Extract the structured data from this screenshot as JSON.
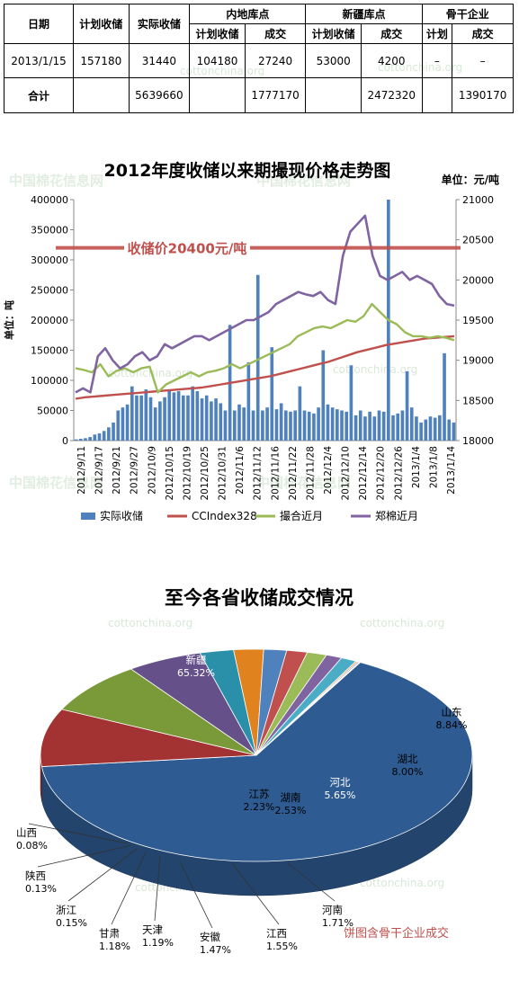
{
  "table": {
    "headers": {
      "date": "日期",
      "planned": "计划收储",
      "actual": "实际收储",
      "inland": "内地库点",
      "xinjiang": "新疆库点",
      "backbone": "骨干企业",
      "sub_planned": "计划收储",
      "sub_deal": "成交",
      "sub_plan_short": "计划"
    },
    "rows": [
      {
        "date": "2013/1/15",
        "planned": "157180",
        "actual": "31440",
        "inland_planned": "104180",
        "inland_deal": "27240",
        "xj_planned": "53000",
        "xj_deal": "4200",
        "bb_planned": "–",
        "bb_deal": "–"
      },
      {
        "date": "合计",
        "planned": "",
        "actual": "5639660",
        "inland_planned": "",
        "inland_deal": "1777170",
        "xj_planned": "",
        "xj_deal": "2472320",
        "bb_planned": "",
        "bb_deal": "1390170"
      }
    ]
  },
  "watermark": {
    "domain": "cottonchina.org",
    "cn": "中国棉花信息网"
  },
  "chart_data": [
    {
      "type": "bar+line",
      "title": "2012年度收储以来期撮现价格走势图",
      "unit_right": "单位：元/吨",
      "ylabel": "单位：吨",
      "ylim": [
        0,
        400000
      ],
      "y2lim": [
        18000,
        21000
      ],
      "yticks": [
        "0",
        "50000",
        "100000",
        "150000",
        "200000",
        "250000",
        "300000",
        "350000",
        "400000"
      ],
      "y2ticks": [
        "18000",
        "18500",
        "19000",
        "19500",
        "20000",
        "20500",
        "21000"
      ],
      "xticks": [
        "2012/9/11",
        "2012/9/17",
        "2012/9/21",
        "2012/9/27",
        "2012/10/9",
        "2012/10/15",
        "2012/10/19",
        "2012/10/25",
        "2012/10/31",
        "2012/11/6",
        "2012/11/12",
        "2012/11/16",
        "2012/11/22",
        "2012/11/28",
        "2012/12/4",
        "2012/12/10",
        "2012/12/14",
        "2012/12/20",
        "2012/12/26",
        "2013/1/4",
        "2013/1/8",
        "2013/1/14"
      ],
      "annotation": {
        "text": "收储价20400元/吨",
        "value": 20400,
        "color": "#c0504d"
      },
      "legend": [
        "实际收储",
        "CCIndex328",
        "撮合近月",
        "郑棉近月"
      ],
      "legend_placement": "bottom",
      "colors": {
        "bars": "#4f81bd",
        "cc": "#c0504d",
        "match": "#9bbb59",
        "zheng": "#8064a2"
      },
      "series": {
        "bars": [
          2000,
          3000,
          4000,
          6000,
          10000,
          12000,
          16000,
          22000,
          30000,
          50000,
          55000,
          60000,
          90000,
          75000,
          75000,
          85000,
          72000,
          55000,
          65000,
          72000,
          85000,
          80000,
          82000,
          75000,
          75000,
          90000,
          82000,
          70000,
          75000,
          65000,
          70000,
          62000,
          50000,
          192000,
          50000,
          60000,
          55000,
          130000,
          50000,
          275000,
          50000,
          55000,
          155000,
          52000,
          62000,
          50000,
          48000,
          50000,
          90000,
          50000,
          48000,
          45000,
          55000,
          150000,
          60000,
          55000,
          52000,
          50000,
          48000,
          125000,
          42000,
          50000,
          40000,
          48000,
          40000,
          50000,
          48000,
          400000,
          42000,
          45000,
          50000,
          115000,
          55000,
          40000,
          30000,
          35000,
          40000,
          38000,
          42000,
          145000,
          35000,
          30000
        ],
        "cc": [
          18520,
          18540,
          18550,
          18560,
          18570,
          18580,
          18590,
          18600,
          18610,
          18620,
          18630,
          18640,
          18650,
          18660,
          18680,
          18700,
          18720,
          18740,
          18760,
          18780,
          18800,
          18830,
          18860,
          18890,
          18920,
          18950,
          18980,
          19020,
          19060,
          19100,
          19130,
          19160,
          19190,
          19210,
          19230,
          19250,
          19270,
          19280,
          19290,
          19300
        ],
        "match": [
          18900,
          18880,
          18850,
          18950,
          18800,
          18870,
          18900,
          18850,
          18900,
          18920,
          18600,
          18700,
          18750,
          18800,
          18850,
          18800,
          18850,
          18870,
          18900,
          18950,
          18900,
          18950,
          19000,
          19050,
          19100,
          19150,
          19200,
          19300,
          19350,
          19400,
          19420,
          19400,
          19450,
          19500,
          19480,
          19550,
          19700,
          19600,
          19500,
          19450,
          19350,
          19300,
          19300,
          19280,
          19300,
          19280,
          19250
        ],
        "zheng": [
          18600,
          18650,
          18600,
          19050,
          19150,
          19000,
          18900,
          18950,
          19050,
          19100,
          19000,
          19050,
          19200,
          19150,
          19200,
          19250,
          19300,
          19300,
          19250,
          19300,
          19350,
          19400,
          19450,
          19500,
          19500,
          19550,
          19600,
          19700,
          19750,
          19800,
          19850,
          19820,
          19800,
          19850,
          19750,
          19700,
          20300,
          20600,
          20700,
          20800,
          20300,
          20050,
          20000,
          20050,
          20100,
          20000,
          20050,
          20000,
          19950,
          19800,
          19700,
          19680
        ]
      }
    },
    {
      "type": "pie",
      "title": "至今各省收储成交情况",
      "footnote": "饼图含骨干企业成交",
      "slices": [
        {
          "name": "新疆",
          "pct": "65.32%",
          "value": 65.32,
          "color": "#2e5b91"
        },
        {
          "name": "山东",
          "pct": "8.84%",
          "value": 8.84,
          "color": "#a33332"
        },
        {
          "name": "湖北",
          "pct": "8.00%",
          "value": 8.0,
          "color": "#7a9a3a"
        },
        {
          "name": "河北",
          "pct": "5.65%",
          "value": 5.65,
          "color": "#65508a"
        },
        {
          "name": "湖南",
          "pct": "2.53%",
          "value": 2.53,
          "color": "#2a8fa9"
        },
        {
          "name": "江苏",
          "pct": "2.23%",
          "value": 2.23,
          "color": "#e0821e"
        },
        {
          "name": "河南",
          "pct": "1.71%",
          "value": 1.71,
          "color": "#4f81bd"
        },
        {
          "name": "江西",
          "pct": "1.55%",
          "value": 1.55,
          "color": "#c0504d"
        },
        {
          "name": "安徽",
          "pct": "1.47%",
          "value": 1.47,
          "color": "#9bbb59"
        },
        {
          "name": "天津",
          "pct": "1.19%",
          "value": 1.19,
          "color": "#8064a2"
        },
        {
          "name": "甘肃",
          "pct": "1.18%",
          "value": 1.18,
          "color": "#4bacc6"
        },
        {
          "name": "浙江",
          "pct": "0.15%",
          "value": 0.15,
          "color": "#f79646"
        },
        {
          "name": "陕西",
          "pct": "0.13%",
          "value": 0.13,
          "color": "#7f9fcf"
        },
        {
          "name": "山西",
          "pct": "0.08%",
          "value": 0.08,
          "color": "#d08a88"
        }
      ]
    }
  ]
}
